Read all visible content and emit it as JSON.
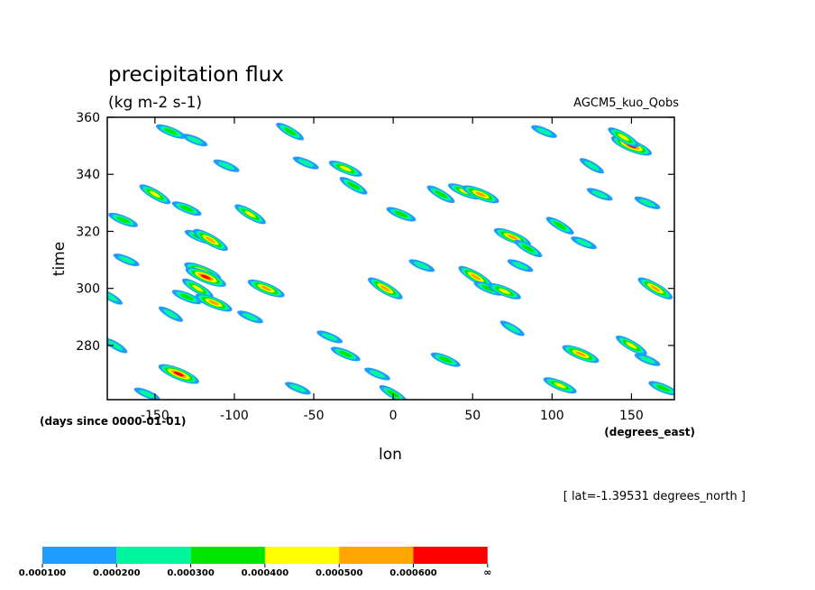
{
  "chart_data": {
    "type": "heatmap",
    "title": "precipitation flux",
    "subtitle": "(kg m-2 s-1)",
    "source_label": "AGCM5_kuo_Qobs",
    "xlabel": "lon",
    "ylabel": "time",
    "x_units": "(degrees_east)",
    "y_units": "(days since 0000-01-01)",
    "slice_label": "[ lat=-1.39531 degrees_north ]",
    "xlim": [
      -180,
      177
    ],
    "ylim": [
      261,
      360
    ],
    "x_ticks": [
      -150,
      -100,
      -50,
      0,
      50,
      100,
      150
    ],
    "x_tick_labels": [
      "-150",
      "-100",
      "-50",
      "0",
      "50",
      "100",
      "150"
    ],
    "y_ticks": [
      280,
      300,
      320,
      340,
      360
    ],
    "y_tick_labels": [
      "280",
      "300",
      "320",
      "340",
      "360"
    ],
    "grid": false,
    "legend_position": "bottom-left",
    "levels": [
      {
        "label": "0.000100",
        "color": "#1e9bff"
      },
      {
        "label": "0.000200",
        "color": "#00f5a0"
      },
      {
        "label": "0.000300",
        "color": "#00e600"
      },
      {
        "label": "0.000400",
        "color": "#ffff00"
      },
      {
        "label": "0.000500",
        "color": "#ffa500"
      },
      {
        "label": "0.000600",
        "color": "#ff0000"
      }
    ],
    "legend_end_label": "∞",
    "cells": [
      [
        -150,
        333,
        4
      ],
      [
        -130,
        328,
        3
      ],
      [
        -122,
        318,
        3
      ],
      [
        -115,
        317,
        5
      ],
      [
        -120,
        306,
        5
      ],
      [
        -118,
        304,
        6
      ],
      [
        -123,
        300,
        4
      ],
      [
        -113,
        295,
        5
      ],
      [
        -130,
        297,
        3
      ],
      [
        -140,
        291,
        2
      ],
      [
        -135,
        270,
        6
      ],
      [
        -155,
        263,
        2
      ],
      [
        -90,
        326,
        4
      ],
      [
        -80,
        300,
        5
      ],
      [
        -105,
        343,
        2
      ],
      [
        -65,
        355,
        3
      ],
      [
        -55,
        344,
        2
      ],
      [
        -30,
        342,
        4
      ],
      [
        -25,
        336,
        3
      ],
      [
        -40,
        283,
        2
      ],
      [
        -30,
        277,
        3
      ],
      [
        -5,
        300,
        5
      ],
      [
        5,
        326,
        3
      ],
      [
        18,
        308,
        2
      ],
      [
        30,
        333,
        3
      ],
      [
        45,
        334,
        4
      ],
      [
        55,
        333,
        5
      ],
      [
        52,
        304,
        5
      ],
      [
        60,
        300,
        3
      ],
      [
        75,
        318,
        5
      ],
      [
        85,
        314,
        3
      ],
      [
        80,
        308,
        2
      ],
      [
        70,
        299,
        4
      ],
      [
        105,
        322,
        3
      ],
      [
        120,
        316,
        2
      ],
      [
        150,
        350,
        6
      ],
      [
        145,
        353,
        4
      ],
      [
        130,
        333,
        2
      ],
      [
        160,
        330,
        2
      ],
      [
        165,
        300,
        5
      ],
      [
        118,
        277,
        5
      ],
      [
        105,
        266,
        4
      ],
      [
        150,
        280,
        4
      ],
      [
        160,
        275,
        2
      ],
      [
        33,
        275,
        3
      ],
      [
        75,
        286,
        2
      ],
      [
        -170,
        324,
        3
      ],
      [
        -168,
        310,
        2
      ],
      [
        -178,
        297,
        2
      ],
      [
        -140,
        355,
        3
      ],
      [
        -125,
        352,
        2
      ],
      [
        -175,
        280,
        2
      ],
      [
        -60,
        265,
        2
      ],
      [
        -10,
        270,
        2
      ],
      [
        0,
        263,
        3
      ],
      [
        -90,
        290,
        2
      ],
      [
        95,
        355,
        2
      ],
      [
        125,
        343,
        2
      ],
      [
        170,
        265,
        3
      ]
    ]
  }
}
